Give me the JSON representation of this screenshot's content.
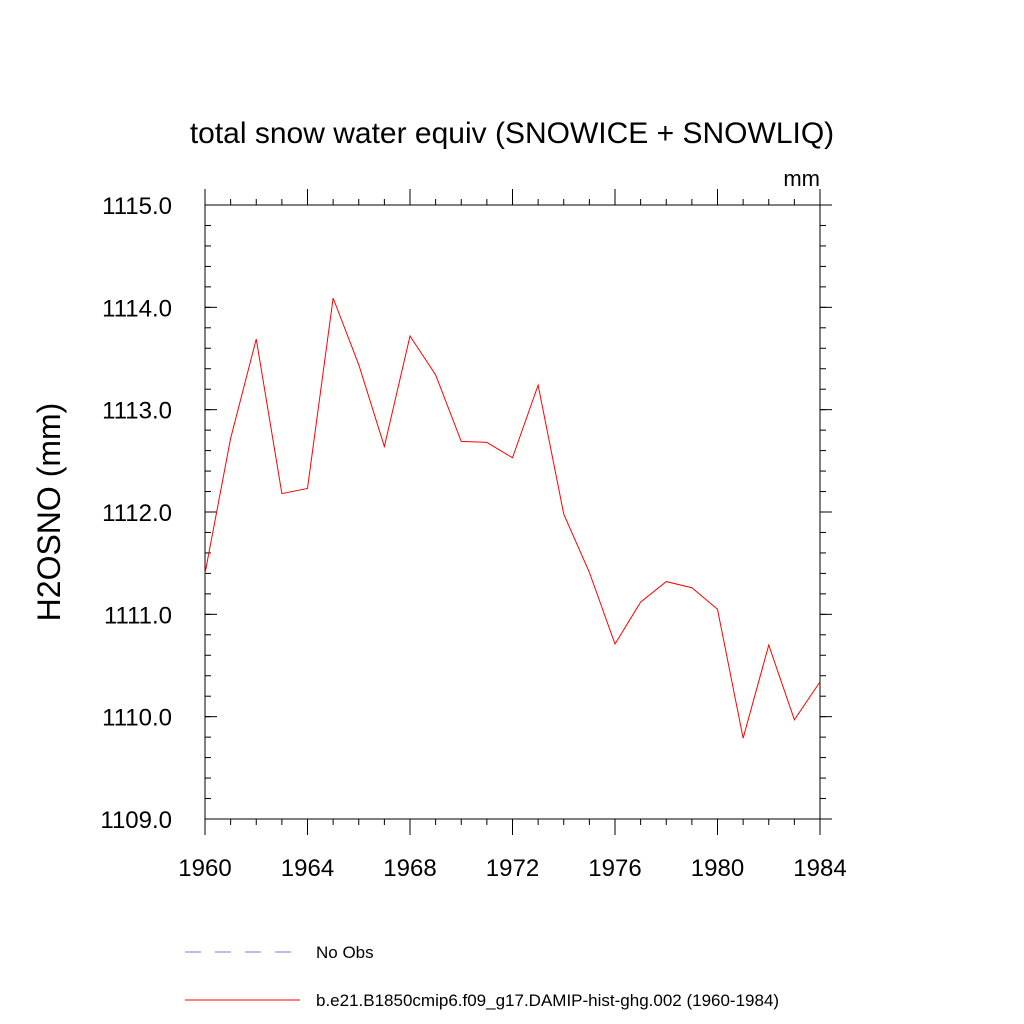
{
  "chart_data": {
    "type": "line",
    "title": "total snow water equiv (SNOWICE + SNOWLIQ)",
    "unit_label": "mm",
    "ylabel": "H2OSNO  (mm)",
    "xlabel": "",
    "xlim": [
      1960,
      1984
    ],
    "ylim": [
      1109.0,
      1115.0
    ],
    "x_ticks": [
      1960,
      1964,
      1968,
      1972,
      1976,
      1980,
      1984
    ],
    "x_tick_labels": [
      "1960",
      "1964",
      "1968",
      "1972",
      "1976",
      "1980",
      "1984"
    ],
    "y_ticks": [
      1109.0,
      1110.0,
      1111.0,
      1112.0,
      1113.0,
      1114.0,
      1115.0
    ],
    "y_tick_labels": [
      "1109.0",
      "1110.0",
      "1111.0",
      "1112.0",
      "1113.0",
      "1114.0",
      "1115.0"
    ],
    "x_minor_step": 1,
    "y_minor_step": 0.2,
    "grid": false,
    "legend_position": "bottom",
    "series": [
      {
        "name": "No Obs",
        "style": "dashed",
        "color": "#7b7bd4",
        "x": [],
        "y": []
      },
      {
        "name": "b.e21.B1850cmip6.f09_g17.DAMIP-hist-ghg.002 (1960-1984)",
        "style": "solid",
        "color": "#ff0000",
        "x": [
          1960,
          1961,
          1962,
          1963,
          1964,
          1965,
          1966,
          1967,
          1968,
          1969,
          1970,
          1971,
          1972,
          1973,
          1974,
          1975,
          1976,
          1977,
          1978,
          1979,
          1980,
          1981,
          1982,
          1983,
          1984
        ],
        "y": [
          1111.4,
          1112.72,
          1113.69,
          1112.18,
          1112.23,
          1114.09,
          1113.44,
          1112.64,
          1113.72,
          1113.34,
          1112.69,
          1112.68,
          1112.53,
          1113.24,
          1111.98,
          1111.41,
          1110.71,
          1111.12,
          1111.32,
          1111.26,
          1111.05,
          1109.79,
          1110.7,
          1109.97,
          1110.34
        ]
      }
    ]
  }
}
